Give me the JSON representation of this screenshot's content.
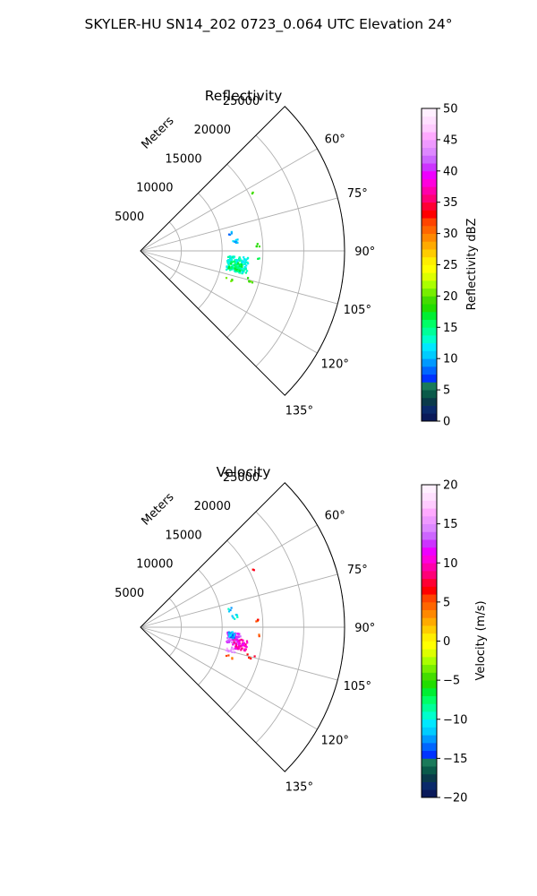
{
  "title": "SKYLER-HU  SN14_202  0723_0.064 UTC Elevation 24°",
  "chart_data": [
    {
      "type": "polar-scatter",
      "title": "Reflectivity",
      "range_label": "Meters",
      "range_ticks": [
        5000,
        10000,
        15000,
        20000,
        25000
      ],
      "range_max": 25000,
      "azimuth_ticks": [
        "60°",
        "75°",
        "90°",
        "105°",
        "120°",
        "135°"
      ],
      "azimuth_tick_values": [
        60,
        75,
        90,
        105,
        120,
        135
      ],
      "azimuth_range": [
        45,
        135
      ],
      "colorbar": {
        "label": "Reflectivity dBZ",
        "ticks": [
          "0",
          "5",
          "10",
          "15",
          "20",
          "25",
          "30",
          "35",
          "40",
          "45",
          "50"
        ],
        "range": [
          0,
          50
        ],
        "colors": [
          "#0a1a5a",
          "#0a2a6a",
          "#0a3a4a",
          "#0a5a4a",
          "#1a7a5a",
          "#0033ff",
          "#0066ff",
          "#0099ff",
          "#00ccff",
          "#00e8ff",
          "#00ffcc",
          "#00ff99",
          "#00ff66",
          "#00ee33",
          "#22dd00",
          "#44dd00",
          "#77ee00",
          "#aaff00",
          "#ddff00",
          "#ffff00",
          "#ffee00",
          "#ffcc00",
          "#ffaa00",
          "#ff8800",
          "#ff6600",
          "#ff4400",
          "#ff0000",
          "#ff0033",
          "#ff0077",
          "#ff00aa",
          "#ff00dd",
          "#ee00ff",
          "#cc33ff",
          "#cc66ff",
          "#dd88ff",
          "#ee99ff",
          "#ffaaff",
          "#ffccff",
          "#ffe0ff",
          "#fff0ff"
        ]
      },
      "clusters": [
        {
          "az": 98,
          "r_from": 10700,
          "r_to": 13300,
          "az_spread": 9,
          "count": 160,
          "value": 13
        },
        {
          "az": 99,
          "r_from": 11000,
          "r_to": 12600,
          "az_spread": 5,
          "count": 40,
          "value": 16
        },
        {
          "az": 84,
          "r_from": 11300,
          "r_to": 12000,
          "az_spread": 3,
          "count": 8,
          "value": 10
        },
        {
          "az": 79,
          "r_from": 11000,
          "r_to": 11600,
          "az_spread": 2,
          "count": 4,
          "value": 9
        },
        {
          "az": 63,
          "r_from": 15300,
          "r_to": 15700,
          "az_spread": 1,
          "count": 2,
          "value": 19
        },
        {
          "az": 87,
          "r_from": 14200,
          "r_to": 14700,
          "az_spread": 2,
          "count": 4,
          "value": 18
        },
        {
          "az": 94,
          "r_from": 14300,
          "r_to": 14600,
          "az_spread": 1,
          "count": 2,
          "value": 16
        },
        {
          "az": 105,
          "r_from": 13500,
          "r_to": 14500,
          "az_spread": 2,
          "count": 5,
          "value": 19
        },
        {
          "az": 108,
          "r_from": 11000,
          "r_to": 12200,
          "az_spread": 2,
          "count": 4,
          "value": 19
        }
      ]
    },
    {
      "type": "polar-scatter",
      "title": "Velocity",
      "range_label": "Meters",
      "range_ticks": [
        5000,
        10000,
        15000,
        20000,
        25000
      ],
      "range_max": 25000,
      "azimuth_ticks": [
        "60°",
        "75°",
        "90°",
        "105°",
        "120°",
        "135°"
      ],
      "azimuth_tick_values": [
        60,
        75,
        90,
        105,
        120,
        135
      ],
      "azimuth_range": [
        45,
        135
      ],
      "colorbar": {
        "label": "Velocity (m/s)",
        "ticks": [
          "−20",
          "−15",
          "−10",
          "−5",
          "0",
          "5",
          "10",
          "15",
          "20"
        ],
        "range": [
          -20,
          20
        ],
        "colors": [
          "#0a1a5a",
          "#0a2a6a",
          "#0a3a4a",
          "#0a5a4a",
          "#1a7a5a",
          "#0033ff",
          "#0066ff",
          "#0099ff",
          "#00ccff",
          "#00e8ff",
          "#00ffcc",
          "#00ff99",
          "#00ff66",
          "#00ee33",
          "#22dd00",
          "#44dd00",
          "#77ee00",
          "#aaff00",
          "#ddff00",
          "#ffff00",
          "#ffee00",
          "#ffcc00",
          "#ffaa00",
          "#ff8800",
          "#ff6600",
          "#ff4400",
          "#ff0000",
          "#ff0033",
          "#ff0077",
          "#ff00aa",
          "#ff00dd",
          "#ee00ff",
          "#cc33ff",
          "#cc66ff",
          "#dd88ff",
          "#ee99ff",
          "#ffaaff",
          "#ffccff",
          "#ffe0ff",
          "#fff0ff"
        ]
      },
      "clusters": [
        {
          "az": 97,
          "r_from": 10700,
          "r_to": 12300,
          "az_spread": 7,
          "count": 80,
          "value": 13
        },
        {
          "az": 100,
          "r_from": 11500,
          "r_to": 13300,
          "az_spread": 6,
          "count": 60,
          "value": 10
        },
        {
          "az": 95,
          "r_from": 10800,
          "r_to": 11600,
          "az_spread": 4,
          "count": 25,
          "value": -12
        },
        {
          "az": 104,
          "r_from": 10900,
          "r_to": 12000,
          "az_spread": 3,
          "count": 15,
          "value": 15
        },
        {
          "az": 84,
          "r_from": 11300,
          "r_to": 12000,
          "az_spread": 3,
          "count": 8,
          "value": -10
        },
        {
          "az": 79,
          "r_from": 11000,
          "r_to": 11600,
          "az_spread": 2,
          "count": 4,
          "value": -11
        },
        {
          "az": 63,
          "r_from": 15300,
          "r_to": 15700,
          "az_spread": 1,
          "count": 2,
          "value": 7
        },
        {
          "az": 87,
          "r_from": 14200,
          "r_to": 14700,
          "az_spread": 2,
          "count": 4,
          "value": 6
        },
        {
          "az": 94,
          "r_from": 14300,
          "r_to": 14600,
          "az_spread": 1,
          "count": 2,
          "value": 6
        },
        {
          "az": 105,
          "r_from": 13500,
          "r_to": 14500,
          "az_spread": 2,
          "count": 5,
          "value": 6
        },
        {
          "az": 108,
          "r_from": 11000,
          "r_to": 12200,
          "az_spread": 2,
          "count": 4,
          "value": 4
        }
      ]
    }
  ]
}
